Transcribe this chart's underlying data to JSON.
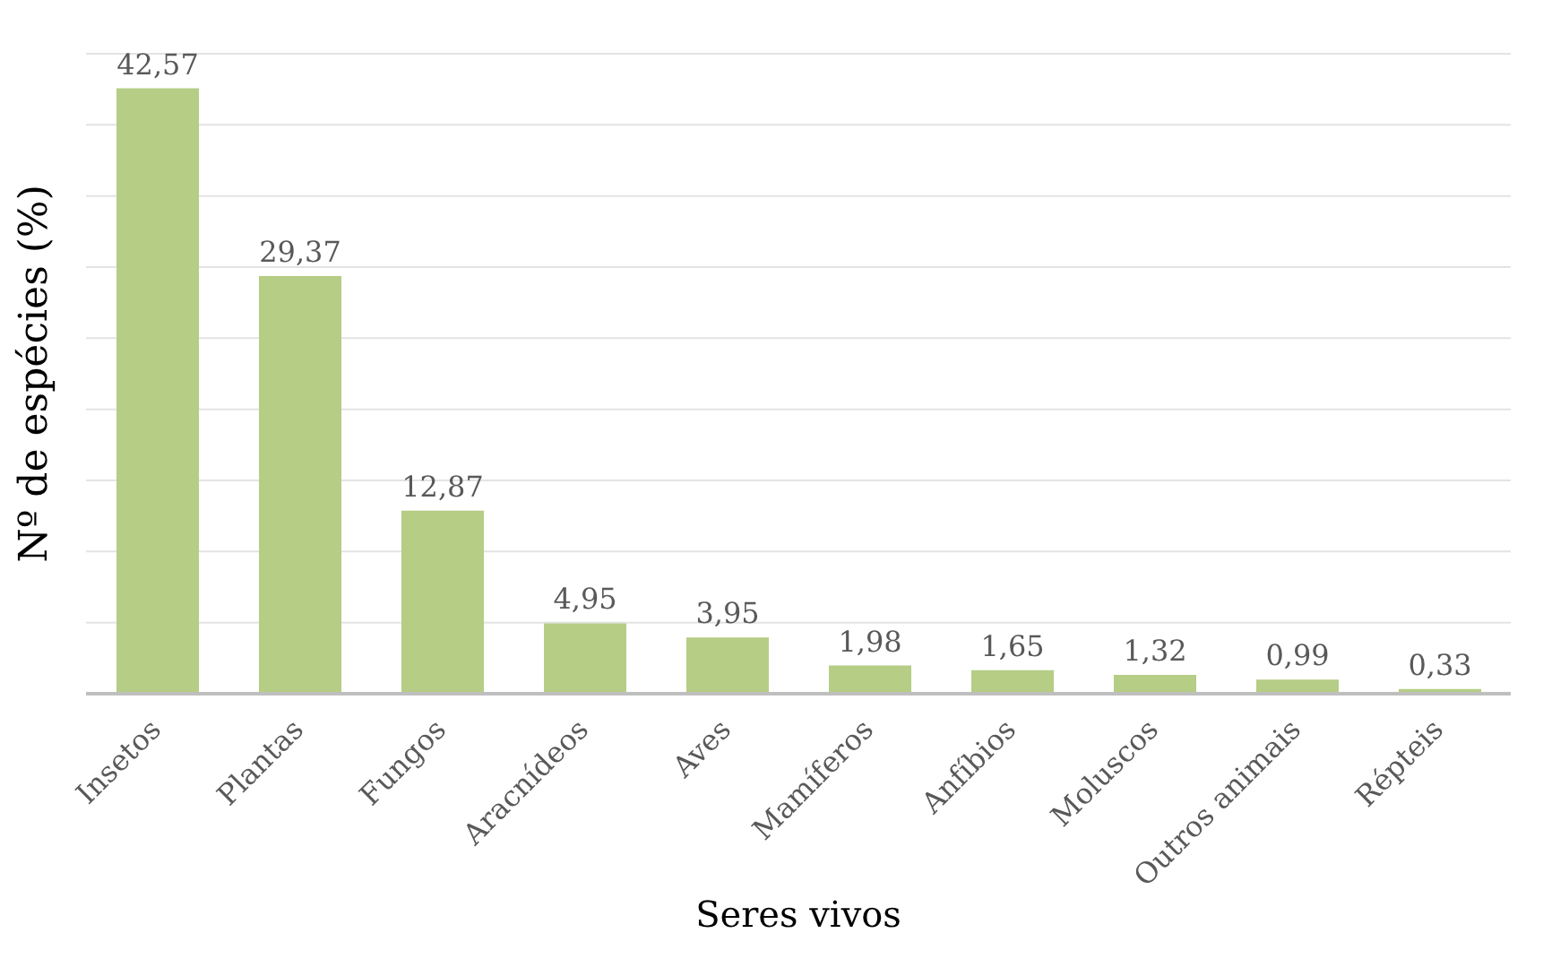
{
  "chart_data": {
    "type": "bar",
    "xlabel": "Seres vivos",
    "ylabel": "Nº de espécies (%)",
    "categories": [
      "Insetos",
      "Plantas",
      "Fungos",
      "Aracnídeos",
      "Aves",
      "Mamíferos",
      "Anfíbios",
      "Moluscos",
      "Outros animais",
      "Répteis"
    ],
    "values": [
      42.57,
      29.37,
      12.87,
      4.95,
      3.95,
      1.98,
      1.65,
      1.32,
      0.99,
      0.33
    ],
    "value_labels": [
      "42,57",
      "29,37",
      "12,87",
      "4,95",
      "3,95",
      "1,98",
      "1,65",
      "1,32",
      "0,99",
      "0,33"
    ],
    "color": "#b5cd85",
    "ylim": [
      0,
      45
    ],
    "yticks": [
      {
        "value": 0,
        "label": null
      },
      {
        "value": 5,
        "label": null
      },
      {
        "value": 10,
        "label": null
      },
      {
        "value": 15,
        "label": null
      },
      {
        "value": 20,
        "label": null
      },
      {
        "value": 25,
        "label": null
      },
      {
        "value": 30,
        "label": null
      },
      {
        "value": 35,
        "label": null
      },
      {
        "value": 40,
        "label": null
      },
      {
        "value": 45,
        "label": null
      }
    ],
    "grid": "y",
    "tick_labels": "x"
  }
}
